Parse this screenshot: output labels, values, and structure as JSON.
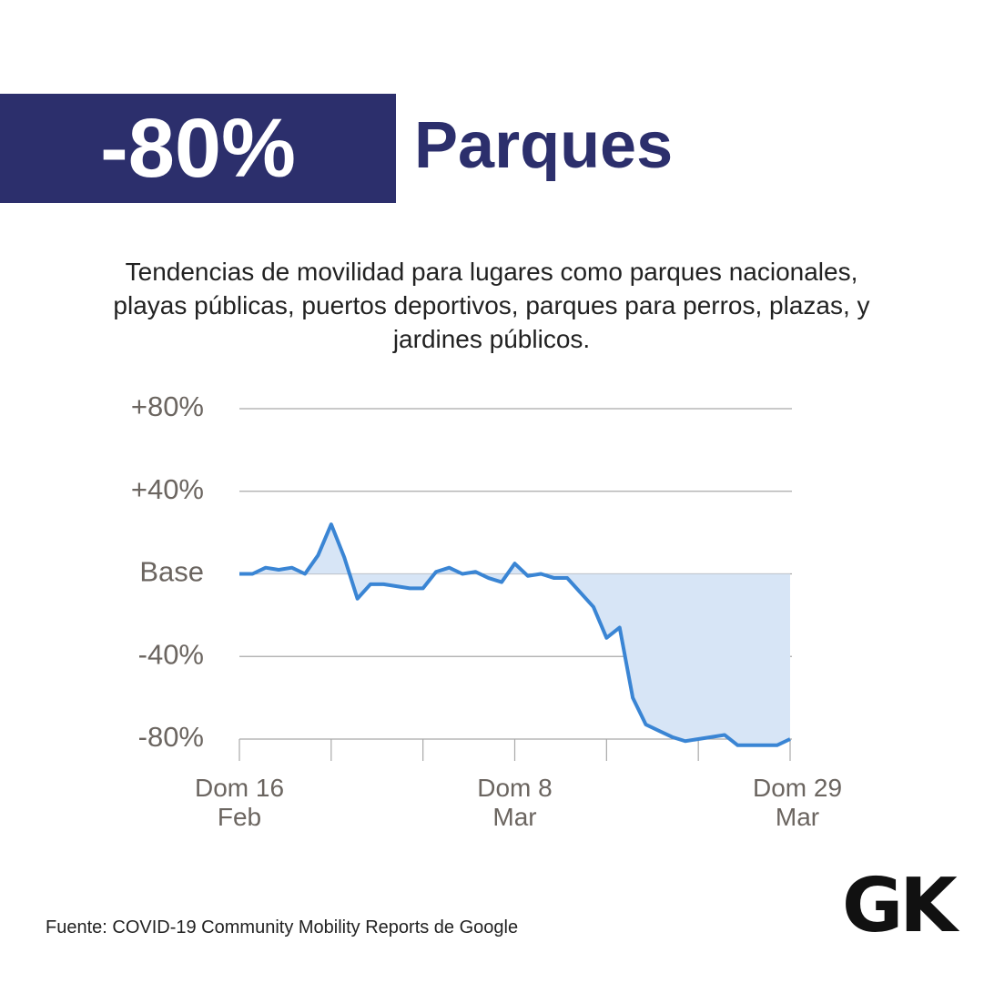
{
  "chart_data": {
    "type": "line",
    "headline": "-80%",
    "title": "Parques",
    "subtitle": "Tendencias de movilidad para lugares como parques nacionales, playas públicas, puertos deportivos, parques para perros, plazas, y jardines públicos.",
    "source": "Fuente: COVID-19 Community Mobility Reports de Google",
    "logo": "GK",
    "categories": [
      "Dom 16 Feb",
      null,
      null,
      null,
      null,
      null,
      null,
      null,
      null,
      null,
      null,
      null,
      null,
      null,
      null,
      null,
      null,
      null,
      null,
      null,
      null,
      "Dom 8 Mar",
      null,
      null,
      null,
      null,
      null,
      null,
      null,
      null,
      null,
      null,
      null,
      null,
      null,
      null,
      null,
      null,
      null,
      null,
      null,
      null,
      "Dom 29 Mar"
    ],
    "series": [
      {
        "color": "#3a85d4",
        "area_color": "#d7e5f6",
        "values": [
          0,
          0,
          3,
          2,
          3,
          0,
          9,
          24,
          8,
          -12,
          -5,
          -5,
          -6,
          -7,
          -7,
          1,
          3,
          0,
          1,
          -2,
          -4,
          5,
          -1,
          0,
          -2,
          -2,
          -9,
          -16,
          -31,
          -26,
          -60,
          -73,
          -76,
          -79,
          -81,
          -80,
          -79,
          -78,
          -83,
          -83,
          -83,
          -83,
          -80
        ]
      }
    ],
    "ylim": [
      -80,
      80
    ],
    "yticks": [
      {
        "value": 80,
        "label": "+80%"
      },
      {
        "value": 40,
        "label": "+40%"
      },
      {
        "value": 0,
        "label": "Base"
      },
      {
        "value": -40,
        "label": "-40%"
      },
      {
        "value": -80,
        "label": "-80%"
      }
    ],
    "xticks": [
      0,
      7,
      14,
      21,
      28,
      35,
      42
    ],
    "grid": true
  }
}
